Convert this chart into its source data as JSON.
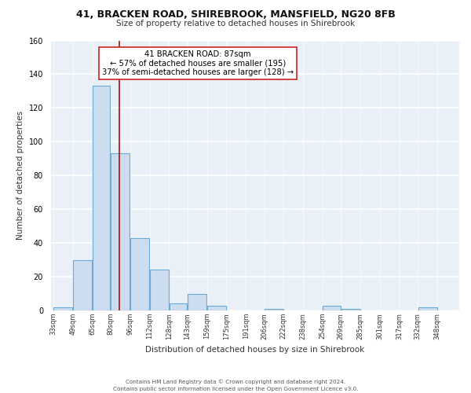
{
  "title": "41, BRACKEN ROAD, SHIREBROOK, MANSFIELD, NG20 8FB",
  "subtitle": "Size of property relative to detached houses in Shirebrook",
  "xlabel": "Distribution of detached houses by size in Shirebrook",
  "ylabel": "Number of detached properties",
  "footer_lines": [
    "Contains HM Land Registry data © Crown copyright and database right 2024.",
    "Contains public sector information licensed under the Open Government Licence v3.0."
  ],
  "bin_labels": [
    "33sqm",
    "49sqm",
    "65sqm",
    "80sqm",
    "96sqm",
    "112sqm",
    "128sqm",
    "143sqm",
    "159sqm",
    "175sqm",
    "191sqm",
    "206sqm",
    "222sqm",
    "238sqm",
    "254sqm",
    "269sqm",
    "285sqm",
    "301sqm",
    "317sqm",
    "332sqm",
    "348sqm"
  ],
  "bar_values": [
    2,
    30,
    133,
    93,
    43,
    24,
    4,
    10,
    3,
    0,
    0,
    1,
    0,
    0,
    3,
    1,
    0,
    0,
    0,
    2,
    0
  ],
  "bar_color": "#ccddf0",
  "bar_edge_color": "#6aaad4",
  "property_label": "41 BRACKEN ROAD: 87sqm",
  "annotation_line1": "← 57% of detached houses are smaller (195)",
  "annotation_line2": "37% of semi-detached houses are larger (128) →",
  "vline_color": "#aa1111",
  "vline_x": 87,
  "bin_edges": [
    33,
    49,
    65,
    80,
    96,
    112,
    128,
    143,
    159,
    175,
    191,
    206,
    222,
    238,
    254,
    269,
    285,
    301,
    317,
    332,
    348,
    364
  ],
  "ylim": [
    0,
    160
  ],
  "yticks": [
    0,
    20,
    40,
    60,
    80,
    100,
    120,
    140,
    160
  ],
  "bg_color": "#eaf0f8"
}
